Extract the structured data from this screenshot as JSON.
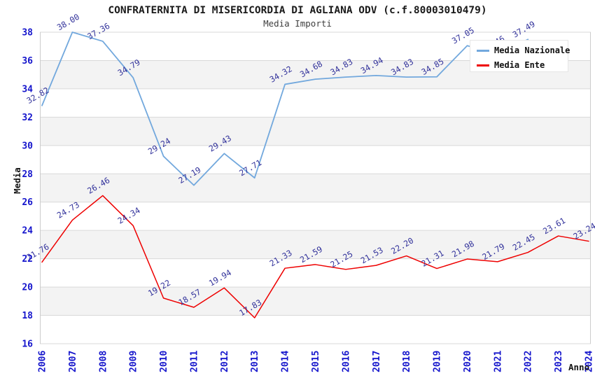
{
  "header": {
    "title": "CONFRATERNITA DI MISERICORDIA DI AGLIANA ODV (c.f.80003010479)",
    "subtitle": "Media Importi"
  },
  "legend": {
    "position": "top-right",
    "items": [
      {
        "label": "Media Nazionale",
        "color": "#72a8dd"
      },
      {
        "label": "Media Ente",
        "color": "#ee0000"
      }
    ]
  },
  "axes": {
    "y_title": "Media",
    "x_title": "Anno",
    "y_ticks": [
      16,
      18,
      20,
      22,
      24,
      26,
      28,
      30,
      32,
      34,
      36,
      38
    ],
    "x_ticks": [
      "2006",
      "2007",
      "2008",
      "2009",
      "2010",
      "2011",
      "2012",
      "2013",
      "2014",
      "2015",
      "2016",
      "2017",
      "2018",
      "2019",
      "2020",
      "2021",
      "2022",
      "2023",
      "2024"
    ]
  },
  "colors": {
    "tick_label": "#1515cc",
    "data_label": "#32329b",
    "grid_line": "#d9d9d9",
    "band_fill": "#f3f3f3",
    "axis_line": "#cccccc",
    "legend_bg": "#ffffff",
    "title_text": "#1a1a1a"
  },
  "chart_data": {
    "type": "line",
    "title": "Media Importi",
    "xlabel": "Anno",
    "ylabel": "Media",
    "ylim": [
      16,
      38
    ],
    "grid": "horizontal",
    "legend_position": "top-right",
    "x": [
      "2006",
      "2007",
      "2008",
      "2009",
      "2010",
      "2011",
      "2012",
      "2013",
      "2014",
      "2015",
      "2016",
      "2017",
      "2018",
      "2019",
      "2020",
      "2021",
      "2022",
      "2023",
      "2024"
    ],
    "series": [
      {
        "name": "Media Nazionale",
        "color": "#72a8dd",
        "values": [
          32.82,
          38.0,
          37.36,
          34.79,
          29.24,
          27.19,
          29.43,
          27.71,
          34.32,
          34.68,
          34.83,
          34.94,
          34.83,
          34.85,
          37.05,
          36.46,
          37.49,
          null,
          null
        ]
      },
      {
        "name": "Media Ente",
        "color": "#ee0000",
        "values": [
          21.76,
          24.73,
          26.46,
          24.34,
          19.22,
          18.57,
          19.94,
          17.83,
          21.33,
          21.59,
          21.25,
          21.53,
          22.2,
          21.31,
          21.98,
          21.79,
          22.45,
          23.61,
          23.24
        ]
      }
    ],
    "alternating_bands": [
      [
        34,
        36
      ],
      [
        30,
        32
      ],
      [
        26,
        28
      ],
      [
        22,
        24
      ],
      [
        18,
        20
      ]
    ]
  }
}
